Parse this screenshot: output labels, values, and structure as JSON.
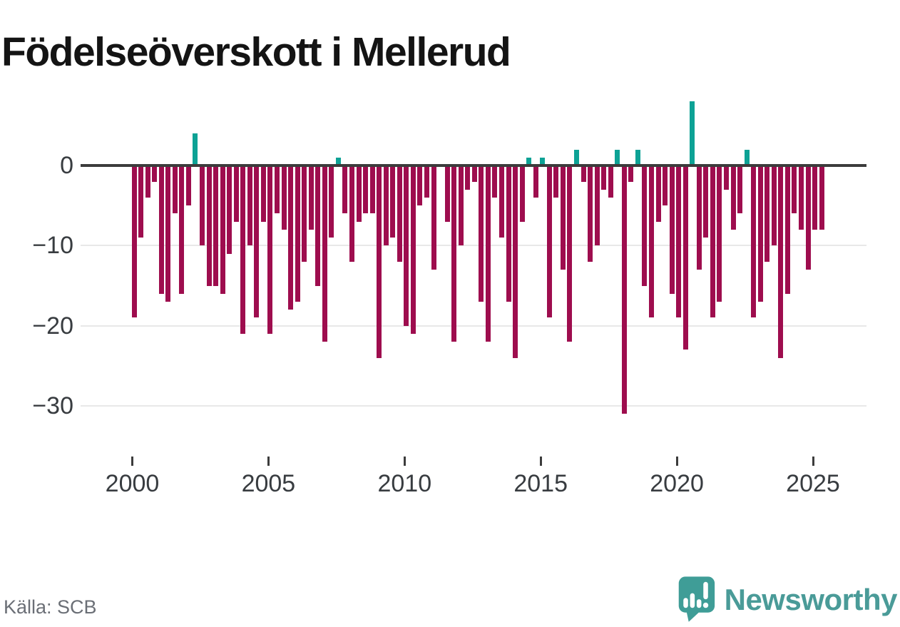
{
  "title": "Födelseöverskott i Mellerud",
  "source_label": "Källa: SCB",
  "brand_name": "Newsworthy",
  "colors": {
    "negative_bar": "#9e0d4e",
    "positive_bar": "#0da295",
    "zero_axis": "#3c3c3c",
    "gridline": "#e8e8e8",
    "axis_text": "#383c40",
    "title_text": "#141414",
    "source_text": "#6b6f76",
    "brand_teal": "#4a9b98"
  },
  "chart_data": {
    "type": "bar",
    "title": "Födelseöverskott i Mellerud",
    "x_unit": "quarter",
    "series_by_year": [
      {
        "year": 2000,
        "quarters": [
          -19,
          -9,
          -4,
          -2
        ]
      },
      {
        "year": 2001,
        "quarters": [
          -16,
          -17,
          -6,
          -16
        ]
      },
      {
        "year": 2002,
        "quarters": [
          -5,
          4,
          -10,
          -15
        ]
      },
      {
        "year": 2003,
        "quarters": [
          -15,
          -16,
          -11,
          -7
        ]
      },
      {
        "year": 2004,
        "quarters": [
          -21,
          -10,
          -19,
          -7
        ]
      },
      {
        "year": 2005,
        "quarters": [
          -21,
          -6,
          -8,
          -18
        ]
      },
      {
        "year": 2006,
        "quarters": [
          -17,
          -12,
          -8,
          -15
        ]
      },
      {
        "year": 2007,
        "quarters": [
          -22,
          -9,
          1,
          -6
        ]
      },
      {
        "year": 2008,
        "quarters": [
          -12,
          -7,
          -6,
          -6
        ]
      },
      {
        "year": 2009,
        "quarters": [
          -24,
          -10,
          -9,
          -12
        ]
      },
      {
        "year": 2010,
        "quarters": [
          -20,
          -21,
          -5,
          -4
        ]
      },
      {
        "year": 2011,
        "quarters": [
          -13,
          0,
          -7,
          -22
        ]
      },
      {
        "year": 2012,
        "quarters": [
          -10,
          -3,
          -2,
          -17
        ]
      },
      {
        "year": 2013,
        "quarters": [
          -22,
          -4,
          -9,
          -17
        ]
      },
      {
        "year": 2014,
        "quarters": [
          -24,
          -7,
          1,
          -4
        ]
      },
      {
        "year": 2015,
        "quarters": [
          1,
          -19,
          -4,
          -13
        ]
      },
      {
        "year": 2016,
        "quarters": [
          -22,
          2,
          -2,
          -12
        ]
      },
      {
        "year": 2017,
        "quarters": [
          -10,
          -3,
          -4,
          2
        ]
      },
      {
        "year": 2018,
        "quarters": [
          -31,
          -2,
          2,
          -15
        ]
      },
      {
        "year": 2019,
        "quarters": [
          -19,
          -7,
          -5,
          -16
        ]
      },
      {
        "year": 2020,
        "quarters": [
          -19,
          -23,
          8,
          -13
        ]
      },
      {
        "year": 2021,
        "quarters": [
          -9,
          -19,
          -17,
          -3
        ]
      },
      {
        "year": 2022,
        "quarters": [
          -8,
          -6,
          2,
          -19
        ]
      },
      {
        "year": 2023,
        "quarters": [
          -17,
          -12,
          -10,
          -24
        ]
      },
      {
        "year": 2024,
        "quarters": [
          -16,
          -6,
          -8,
          -13
        ]
      },
      {
        "year": 2025,
        "quarters": [
          -8,
          -8
        ]
      }
    ],
    "y_ticks": [
      0,
      -10,
      -20,
      -30
    ],
    "x_tick_years": [
      2000,
      2005,
      2010,
      2015,
      2020,
      2025
    ],
    "ylim": [
      -32,
      9
    ],
    "grid": "horizontal",
    "legend": "none"
  }
}
